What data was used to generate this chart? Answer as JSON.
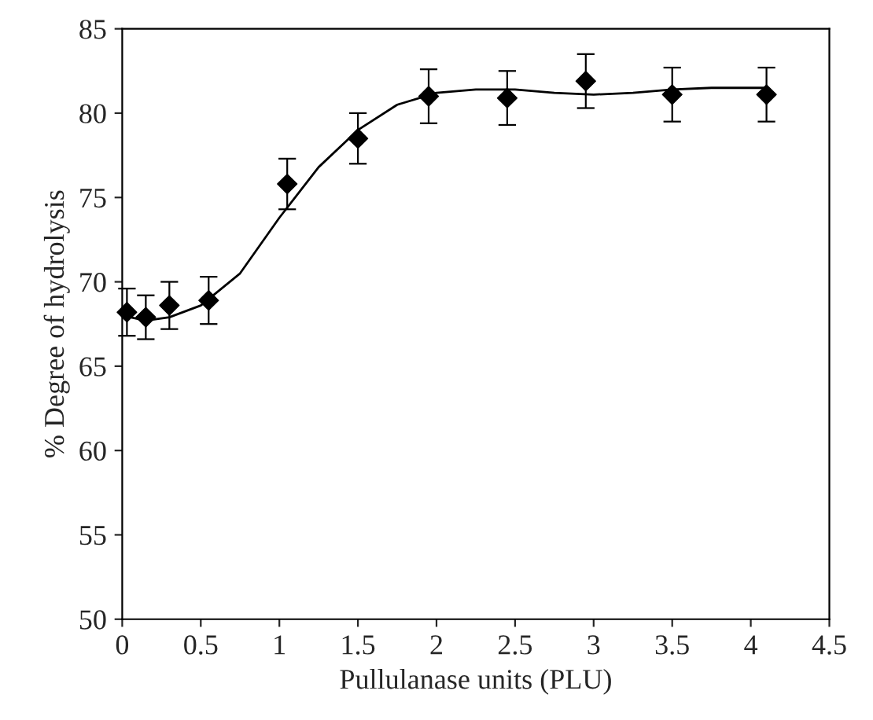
{
  "chart_data": {
    "type": "scatter",
    "xlabel": "Pullulanase units (PLU)",
    "ylabel": "% Degree of hydrolysis",
    "xlim": [
      0,
      4.5
    ],
    "xticks": [
      0,
      0.5,
      1,
      1.5,
      2,
      2.5,
      3,
      3.5,
      4,
      4.5
    ],
    "ylim": [
      50,
      85
    ],
    "yticks": [
      50,
      55,
      60,
      65,
      70,
      75,
      80,
      85
    ],
    "grid": false,
    "legend": false,
    "series": [
      {
        "color": "#000000",
        "marker": "diamond",
        "x": [
          0.03,
          0.15,
          0.3,
          0.55,
          1.05,
          1.5,
          1.95,
          2.45,
          2.95,
          3.5,
          4.1
        ],
        "values": [
          68.2,
          67.9,
          68.6,
          68.9,
          75.8,
          78.5,
          81.0,
          80.9,
          81.9,
          81.1,
          81.1
        ],
        "errors": [
          1.4,
          1.3,
          1.4,
          1.4,
          1.5,
          1.5,
          1.6,
          1.6,
          1.6,
          1.6,
          1.6
        ]
      },
      {
        "type": "line",
        "color": "#000000",
        "marker": "none",
        "line_style": "solid",
        "x": [
          0,
          0.15,
          0.3,
          0.5,
          0.75,
          1.0,
          1.25,
          1.5,
          1.75,
          2.0,
          2.25,
          2.5,
          2.75,
          3.0,
          3.25,
          3.5,
          3.75,
          4.0,
          4.1
        ],
        "values": [
          68.0,
          67.7,
          67.9,
          68.6,
          70.5,
          73.8,
          76.8,
          79.0,
          80.5,
          81.2,
          81.4,
          81.4,
          81.2,
          81.1,
          81.2,
          81.4,
          81.5,
          81.5,
          81.5
        ]
      }
    ]
  }
}
